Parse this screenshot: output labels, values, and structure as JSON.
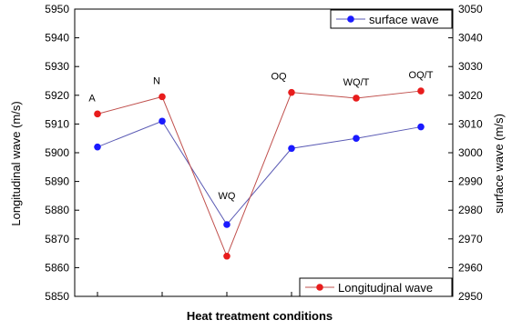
{
  "chart_data": {
    "type": "line",
    "xlabel": "Heat treatment conditions",
    "ylabel_left": "Longitudinal wave (m/s)",
    "ylabel_right": "surface wave (m/s)",
    "ylim_left": [
      5850,
      5950
    ],
    "ylim_right": [
      2950,
      3050
    ],
    "yticks_left": [
      5850,
      5860,
      5870,
      5880,
      5890,
      5900,
      5910,
      5920,
      5930,
      5940,
      5950
    ],
    "yticks_right": [
      2950,
      2960,
      2970,
      2980,
      2990,
      3000,
      3010,
      3020,
      3030,
      3040,
      3050
    ],
    "categories": [
      "A",
      "N",
      "WQ",
      "OQ",
      "WQ/T",
      "OQ/T"
    ],
    "grid": false,
    "series": [
      {
        "name": "surface wave",
        "axis": "right",
        "color": "#1a1aff",
        "line_color": "#5a5ab4",
        "values": [
          3002,
          3011,
          2975,
          3001.5,
          3005,
          3009
        ]
      },
      {
        "name": "Longitudjnal wave",
        "axis": "left",
        "color": "#e81c1c",
        "line_color": "#c0504d",
        "values": [
          5913.5,
          5919.5,
          5864,
          5921,
          5919,
          5921.5
        ]
      }
    ],
    "legend": [
      {
        "placement": "top-right",
        "series": 0
      },
      {
        "placement": "bottom-right",
        "series": 1
      }
    ]
  }
}
